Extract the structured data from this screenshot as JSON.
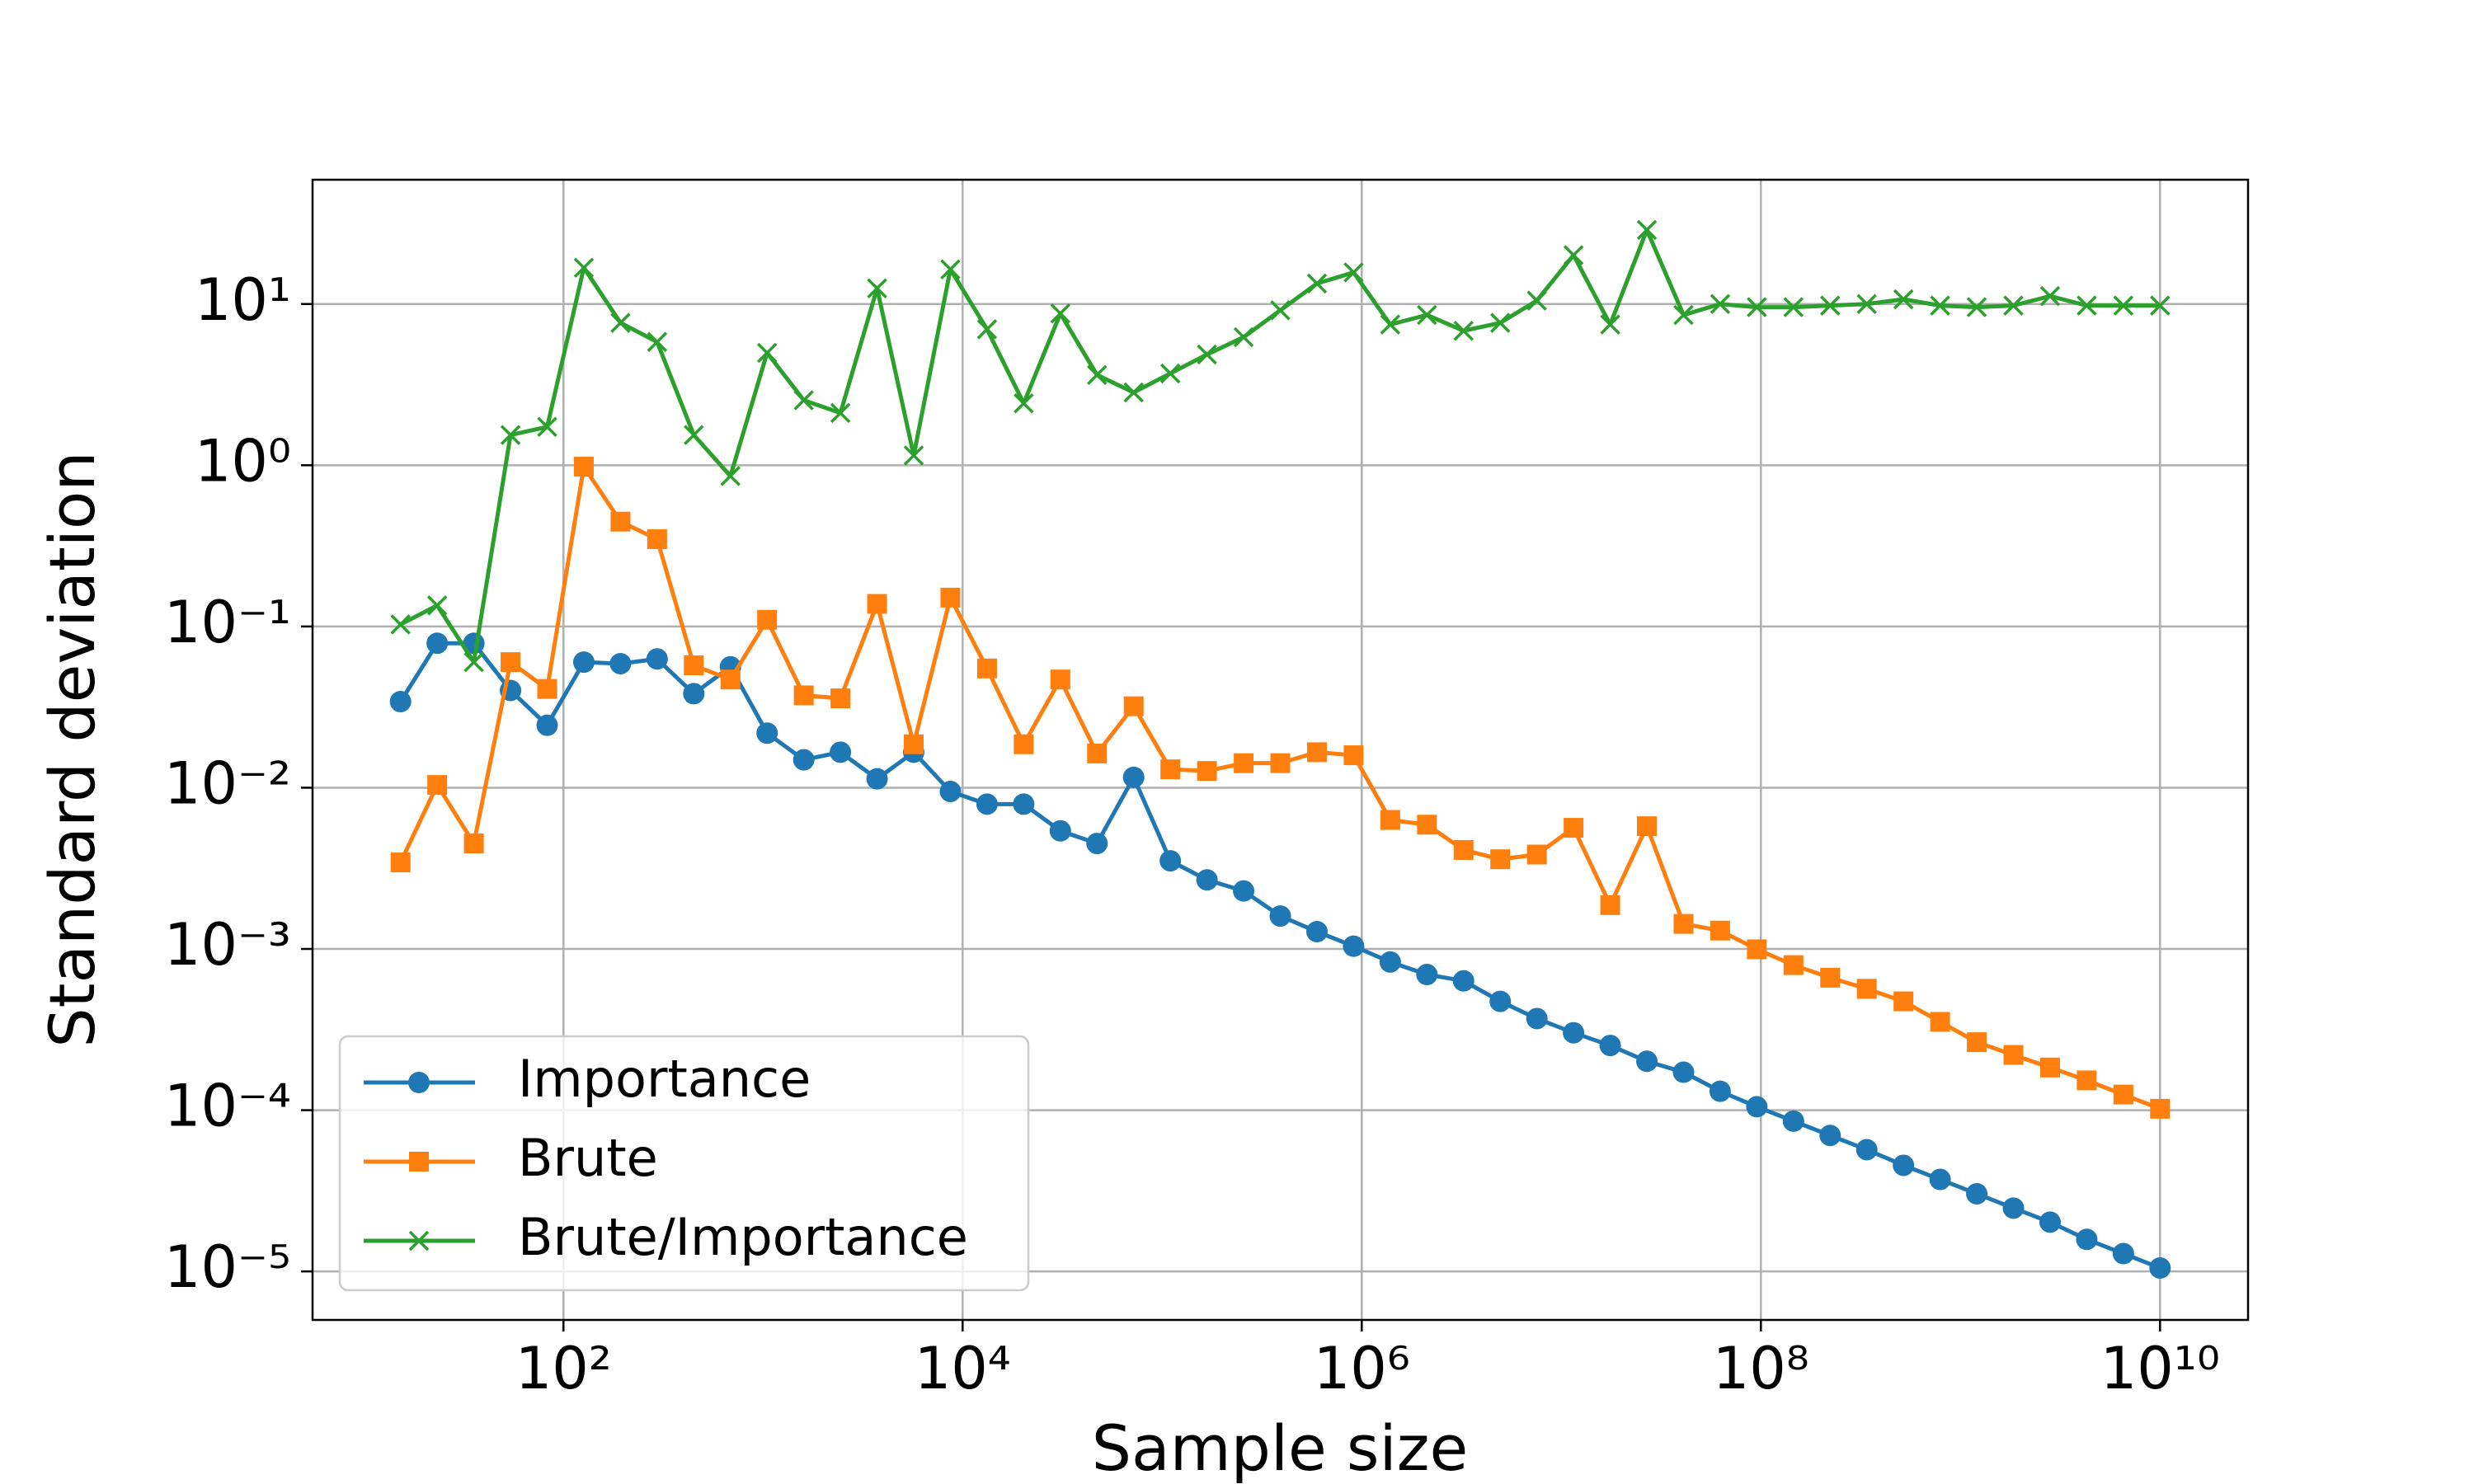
{
  "chart_data": {
    "type": "line",
    "x_label": "Sample size",
    "y_label": "Standard deviation",
    "xscale": "log",
    "yscale": "log",
    "grid": true,
    "legend": "lower left",
    "xlim": [
      5.53,
      27600000000
    ],
    "ylim": [
      5e-06,
      59
    ],
    "xticks": [
      {
        "value": 100,
        "label": "10²"
      },
      {
        "value": 10000,
        "label": "10⁴"
      },
      {
        "value": 1000000,
        "label": "10⁶"
      },
      {
        "value": 100000000,
        "label": "10⁸"
      },
      {
        "value": 10000000000,
        "label": "10¹⁰"
      }
    ],
    "yticks": [
      {
        "value": 1e-05,
        "label": "10⁻⁵"
      },
      {
        "value": 0.0001,
        "label": "10⁻⁴"
      },
      {
        "value": 0.001,
        "label": "10⁻³"
      },
      {
        "value": 0.01,
        "label": "10⁻²"
      },
      {
        "value": 0.1,
        "label": "10⁻¹"
      },
      {
        "value": 1,
        "label": "10⁰"
      },
      {
        "value": 10,
        "label": "10¹"
      }
    ],
    "x": [
      15.26,
      23.3,
      35.56,
      54.29,
      82.86,
      126.5,
      193.1,
      294.7,
      449.8,
      686.6,
      1048,
      1600,
      2442,
      3728,
      5690,
      8685,
      13257,
      20236,
      30888,
      47149,
      71969,
      109854,
      167683,
      255955,
      390694,
      596362,
      910298,
      1389495,
      2120951,
      3237458,
      4941713,
      7543120,
      11513954,
      17575106,
      26826958,
      40949150,
      62505519,
      95409548,
      145634848,
      222299648,
      339322177,
      517947468,
      790604321,
      1206792640,
      1842069969,
      2811768698,
      4291934260,
      6551285569,
      10000000000
    ],
    "series": [
      {
        "name": "Importance",
        "color": "#1f77b4",
        "marker": "o",
        "values": [
          0.0342,
          0.0787,
          0.0787,
          0.0401,
          0.0244,
          0.0601,
          0.0588,
          0.0629,
          0.0383,
          0.0562,
          0.0218,
          0.0149,
          0.0166,
          0.01135,
          0.0166,
          0.00948,
          0.00791,
          0.00791,
          0.0054,
          0.00451,
          0.0116,
          0.00352,
          0.00268,
          0.00229,
          0.0016,
          0.00128,
          0.00104,
          0.00083,
          0.000694,
          0.000634,
          0.000473,
          0.00037,
          0.000302,
          0.000252,
          0.000201,
          0.000172,
          0.000131,
          0.000105,
          8.55e-05,
          6.97e-05,
          5.69e-05,
          4.55e-05,
          3.72e-05,
          3.03e-05,
          2.47e-05,
          2.02e-05,
          1.58e-05,
          1.29e-05,
          1.05e-05
        ]
      },
      {
        "name": "Brute",
        "color": "#ff7f0e",
        "marker": "s",
        "values": [
          0.00344,
          0.0104,
          0.00451,
          0.0601,
          0.041,
          0.98,
          0.447,
          0.348,
          0.0574,
          0.0469,
          0.11,
          0.0374,
          0.0358,
          0.138,
          0.0186,
          0.151,
          0.0549,
          0.0186,
          0.0469,
          0.0163,
          0.032,
          0.013,
          0.0127,
          0.0142,
          0.0142,
          0.0166,
          0.0159,
          0.00631,
          0.0059,
          0.00411,
          0.0036,
          0.00385,
          0.00564,
          0.00187,
          0.00577,
          0.00143,
          0.0013,
          0.000995,
          0.000794,
          0.000663,
          0.000566,
          0.000473,
          0.000353,
          0.000264,
          0.00022,
          0.000184,
          0.000153,
          0.000125,
          0.000102
        ]
      },
      {
        "name": "Brute/Importance",
        "color": "#2ca02c",
        "marker": "x",
        "values": [
          0.103,
          0.135,
          0.0601,
          1.54,
          1.73,
          16.8,
          7.64,
          5.82,
          1.54,
          0.857,
          4.98,
          2.53,
          2.11,
          12.5,
          1.15,
          16.4,
          6.97,
          2.42,
          8.73,
          3.63,
          2.83,
          3.71,
          4.86,
          6.23,
          9.14,
          13.4,
          15.7,
          7.46,
          8.55,
          6.82,
          7.64,
          10.5,
          20.1,
          7.46,
          28.8,
          8.55,
          10,
          9.56,
          9.56,
          9.78,
          10,
          10.7,
          9.78,
          9.56,
          9.78,
          11.2,
          9.78,
          9.78,
          9.78
        ]
      }
    ]
  }
}
